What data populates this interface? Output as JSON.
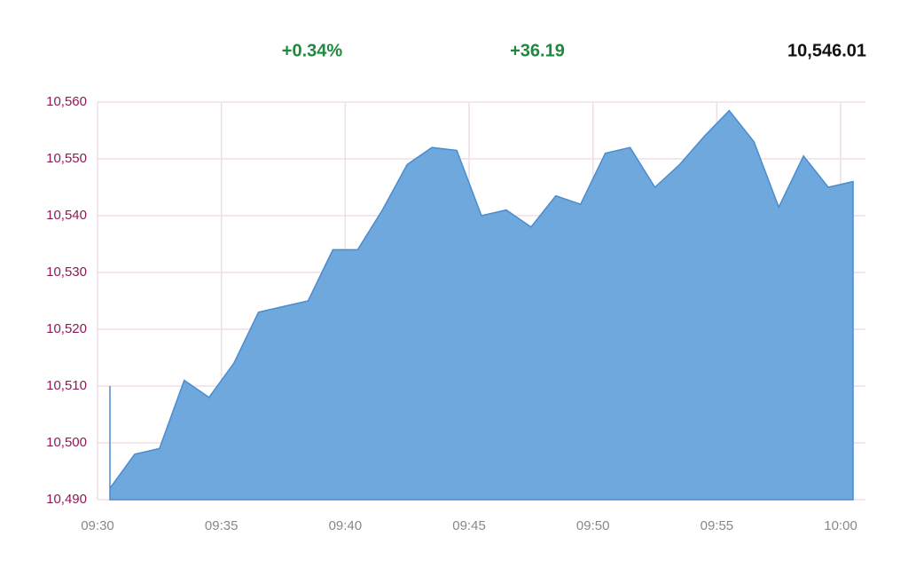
{
  "chart_data": {
    "type": "area",
    "change_percent": "+0.34%",
    "change": "+36.19",
    "last": "10,546.01",
    "x": [
      570.5,
      570.5,
      571.5,
      572.5,
      573.5,
      574.5,
      575.5,
      576.5,
      577.5,
      578.5,
      579.5,
      580.5,
      581.5,
      582.5,
      583.5,
      584.5,
      585.5,
      586.5,
      587.5,
      588.5,
      589.5,
      590.5,
      591.5,
      592.5,
      593.5,
      594.5,
      595.5,
      596.5,
      597.5,
      598.5,
      599.5,
      600.5
    ],
    "series": [
      {
        "color": "#6fa8dc",
        "values": [
          10510,
          10492,
          10498,
          10499,
          10511,
          10508,
          10514,
          10523,
          10524,
          10525,
          10534,
          10534,
          10541,
          10549,
          10552,
          10551.5,
          10540,
          10541,
          10538,
          10543.5,
          10542,
          10551,
          10552,
          10545,
          10549,
          10554,
          10558.5,
          10553,
          10541.5,
          10550.5,
          10545,
          10546
        ]
      }
    ],
    "xlim": [
      570,
      601
    ],
    "xticks": [
      {
        "value": 570,
        "label": "09:30"
      },
      {
        "value": 575,
        "label": "09:35"
      },
      {
        "value": 580,
        "label": "09:40"
      },
      {
        "value": 585,
        "label": "09:45"
      },
      {
        "value": 590,
        "label": "09:50"
      },
      {
        "value": 595,
        "label": "09:55"
      },
      {
        "value": 600,
        "label": "10:00"
      }
    ],
    "ylim": [
      10490,
      10560
    ],
    "yticks": [
      {
        "value": 10490,
        "label": "10,490"
      },
      {
        "value": 10500,
        "label": "10,500"
      },
      {
        "value": 10510,
        "label": "10,510"
      },
      {
        "value": 10520,
        "label": "10,520"
      },
      {
        "value": 10530,
        "label": "10,530"
      },
      {
        "value": 10540,
        "label": "10,540"
      },
      {
        "value": 10550,
        "label": "10,550"
      },
      {
        "value": 10560,
        "label": "10,560"
      }
    ],
    "grid": true
  }
}
